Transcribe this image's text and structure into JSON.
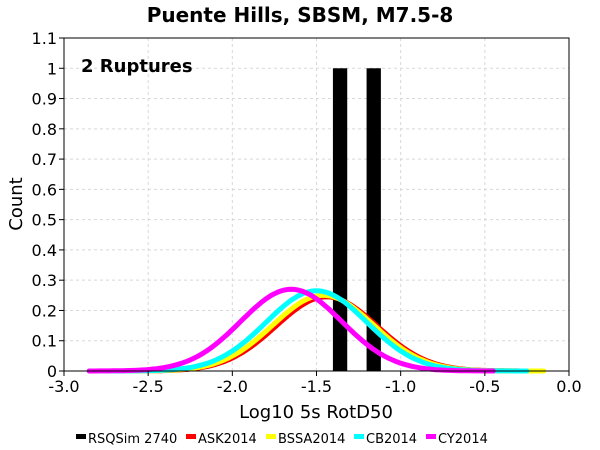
{
  "chart_data": {
    "type": "bar",
    "title": "Puente Hills, SBSM, M7.5-8",
    "xlabel": "Log10 5s RotD50",
    "ylabel": "Count",
    "annotation": "2 Ruptures",
    "xlim": [
      -3.0,
      0.0
    ],
    "ylim": [
      0,
      1.1
    ],
    "xticks": [
      "-3.0",
      "-2.5",
      "-2.0",
      "-1.5",
      "-1.0",
      "-0.5",
      "0.0"
    ],
    "yticks": [
      "0",
      "0.1",
      "0.2",
      "0.3",
      "0.4",
      "0.5",
      "0.6",
      "0.7",
      "0.8",
      "0.9",
      "1",
      "1.1"
    ],
    "grid": true,
    "legend_position": "bottom",
    "bars": {
      "name": "RSQSim 2740",
      "color": "#000000",
      "bin_width": 0.085,
      "centers": [
        -1.36,
        -1.16
      ],
      "values": [
        1,
        1
      ]
    },
    "series": [
      {
        "name": "ASK2014",
        "color": "#ff0000",
        "mean": -1.44,
        "sd": 0.3,
        "peak": 0.245,
        "x_range": [
          -2.8,
          -0.2
        ]
      },
      {
        "name": "BSSA2014",
        "color": "#ffff00",
        "mean": -1.46,
        "sd": 0.3,
        "peak": 0.25,
        "x_range": [
          -2.82,
          -0.15
        ]
      },
      {
        "name": "CB2014",
        "color": "#00ffff",
        "mean": -1.5,
        "sd": 0.3,
        "peak": 0.265,
        "x_range": [
          -2.85,
          -0.25
        ]
      },
      {
        "name": "CY2014",
        "color": "#ff00ff",
        "mean": -1.65,
        "sd": 0.3,
        "peak": 0.27,
        "x_range": [
          -2.85,
          -0.45
        ]
      }
    ]
  }
}
